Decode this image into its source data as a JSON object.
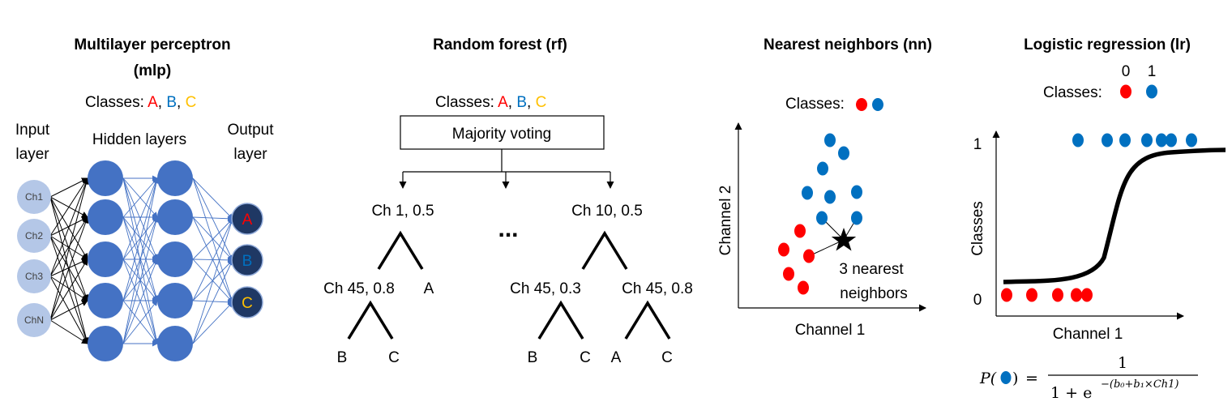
{
  "colors": {
    "red": "#ff0000",
    "blue": "#0070c0",
    "gold": "#ffc000",
    "node_light": "#b4c7e7",
    "node_hidden": "#4472c4",
    "node_output": "#1f3864",
    "dot_blue": "#0070c0",
    "dot_red": "#ff0000"
  },
  "mlp": {
    "title_line1": "Multilayer perceptron",
    "title_line2": "(mlp)",
    "classes_label": "Classes: ",
    "classes": [
      "A",
      "B",
      "C"
    ],
    "input_label_1": "Input",
    "input_label_2": "layer",
    "hidden_label": "Hidden layers",
    "output_label_1": "Output",
    "output_label_2": "layer",
    "input_nodes": [
      "Ch1",
      "Ch2",
      "Ch3",
      "ChN"
    ],
    "output_nodes": [
      "A",
      "B",
      "C"
    ]
  },
  "rf": {
    "title": "Random forest (rf)",
    "classes_label": "Classes: ",
    "classes": [
      "A",
      "B",
      "C"
    ],
    "voting": "Majority voting",
    "ellipsis": "...",
    "tree1": {
      "root": "Ch 1, 0.5",
      "left": "Ch 45, 0.8",
      "right": "A",
      "left_leaves": [
        "B",
        "C"
      ]
    },
    "tree2": {
      "root": "Ch 10, 0.5",
      "left": "Ch 45, 0.3",
      "right": "Ch 45, 0.8",
      "left_leaves": [
        "B",
        "C"
      ],
      "right_leaves": [
        "A",
        "C"
      ]
    }
  },
  "nn": {
    "title": "Nearest neighbors (nn)",
    "classes_label": "Classes:",
    "ylabel": "Channel 2",
    "xlabel": "Channel 1",
    "annotation_1": "3 nearest",
    "annotation_2": "neighbors"
  },
  "lr": {
    "title": "Logistic regression (lr)",
    "class_0": "0",
    "class_1": "1",
    "classes_label": "Classes:",
    "ylabel": "Classes",
    "xlabel": "Channel 1",
    "ytick_1": "1",
    "ytick_0": "0",
    "formula_numerator": "1",
    "formula_p": "P(",
    "formula_close": ")",
    "formula_eq": "=",
    "formula_denominator": "1 + e",
    "formula_exponent": "−(b₀+b₁×Ch1)"
  }
}
